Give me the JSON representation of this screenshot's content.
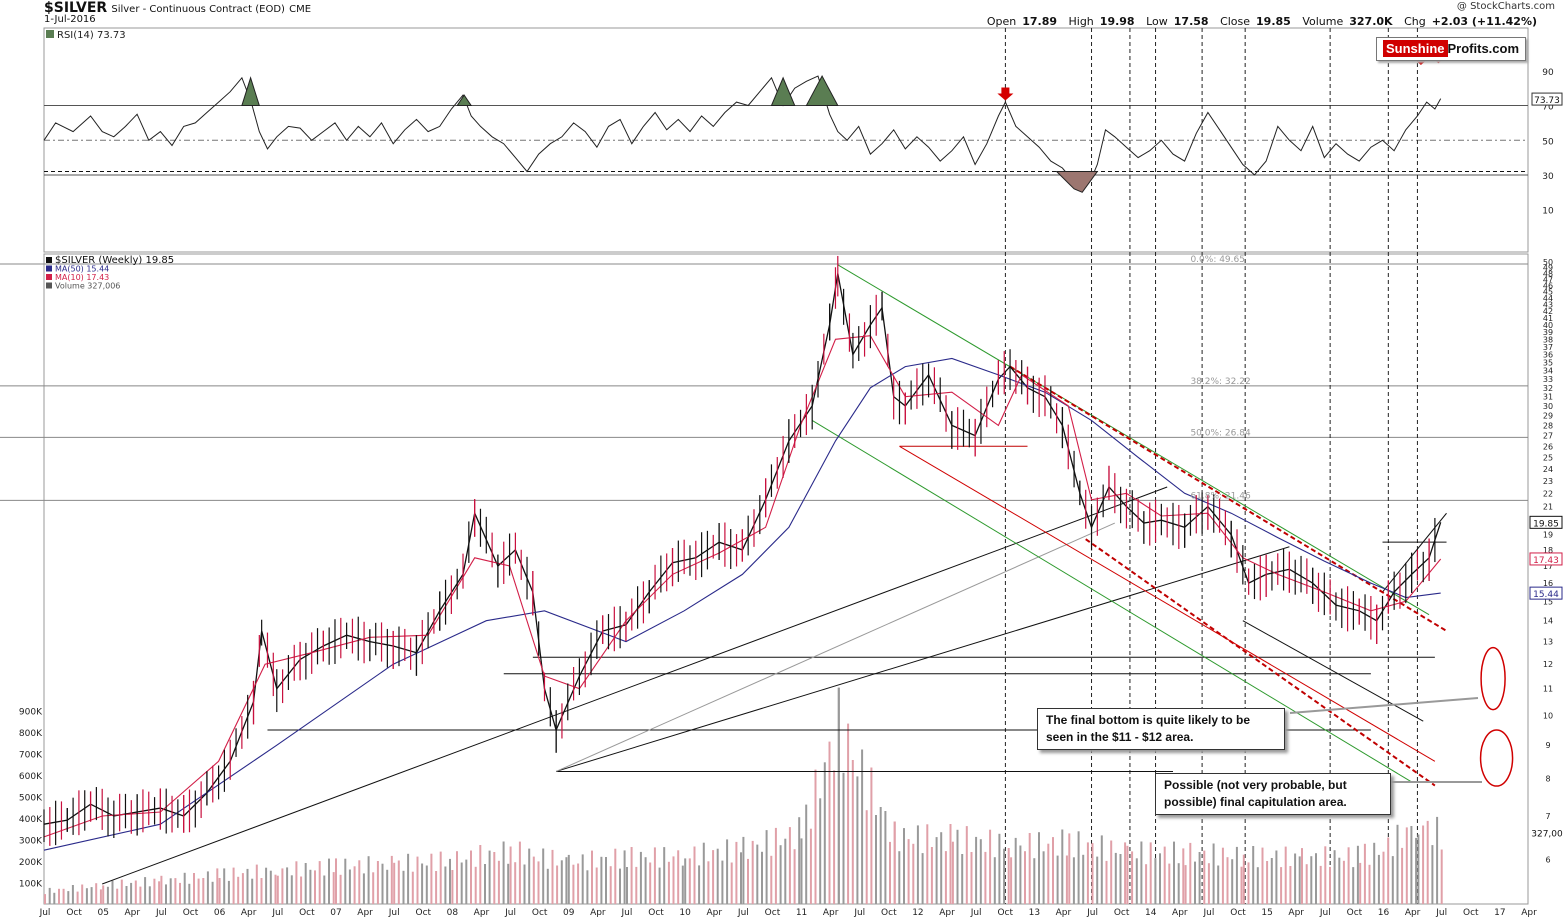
{
  "header": {
    "symbol": "$SILVER",
    "subtitle": "Silver - Continuous Contract (EOD)",
    "exchange": "CME",
    "date": "1-Jul-2016",
    "credit": "@ StockCharts.com",
    "ohlc": {
      "open_label": "Open",
      "open": "17.89",
      "high_label": "High",
      "high": "19.98",
      "low_label": "Low",
      "low": "17.58",
      "close_label": "Close",
      "close": "19.85",
      "volume_label": "Volume",
      "volume": "327.0K",
      "chg_label": "Chg",
      "chg": "+2.03 (+11.42%)"
    }
  },
  "brand": {
    "part1": "Sunshine",
    "part2": "Profits.com"
  },
  "annotations": {
    "note1": "The final bottom is quite likely to be seen in the $11 - $12 area.",
    "note2": "Possible (not very probable, but possible) final capitulation area."
  },
  "chart_data": [
    {
      "type": "line",
      "panel": "rsi",
      "legend": "RSI(14) 73.73",
      "last_value_label": "73.73",
      "last_value": 73.73,
      "y_ticks": [
        10,
        30,
        50,
        70,
        90
      ],
      "y_range": [
        0,
        100
      ],
      "reference_lines": [
        70,
        50,
        32
      ],
      "x_date_range": [
        2004.5,
        2016.5
      ],
      "series": [
        {
          "x": [
            2004.5,
            2004.6,
            2004.75,
            2004.9,
            2005.0,
            2005.1,
            2005.2,
            2005.3,
            2005.4,
            2005.5,
            2005.6,
            2005.7,
            2005.8,
            2005.9,
            2006.0,
            2006.1,
            2006.2,
            2006.28,
            2006.35,
            2006.42,
            2006.5,
            2006.6,
            2006.7,
            2006.8,
            2006.9,
            2007.0,
            2007.1,
            2007.2,
            2007.3,
            2007.4,
            2007.5,
            2007.6,
            2007.7,
            2007.8,
            2007.9,
            2008.0,
            2008.1,
            2008.17,
            2008.25,
            2008.35,
            2008.45,
            2008.55,
            2008.65,
            2008.75,
            2008.85,
            2008.95,
            2009.05,
            2009.15,
            2009.25,
            2009.35,
            2009.45,
            2009.55,
            2009.65,
            2009.75,
            2009.85,
            2009.95,
            2010.05,
            2010.15,
            2010.25,
            2010.35,
            2010.45,
            2010.55,
            2010.65,
            2010.75,
            2010.85,
            2010.95,
            2011.05,
            2011.15,
            2011.25,
            2011.32,
            2011.4,
            2011.5,
            2011.6,
            2011.7,
            2011.8,
            2011.9,
            2012.0,
            2012.1,
            2012.2,
            2012.3,
            2012.4,
            2012.5,
            2012.6,
            2012.7,
            2012.76,
            2012.85,
            2012.95,
            2013.05,
            2013.15,
            2013.25,
            2013.35,
            2013.42,
            2013.5,
            2013.55,
            2013.62,
            2013.7,
            2013.8,
            2013.9,
            2014.0,
            2014.1,
            2014.2,
            2014.3,
            2014.4,
            2014.5,
            2014.6,
            2014.7,
            2014.8,
            2014.9,
            2015.0,
            2015.1,
            2015.2,
            2015.3,
            2015.4,
            2015.5,
            2015.6,
            2015.7,
            2015.8,
            2015.9,
            2016.0,
            2016.1,
            2016.2,
            2016.3,
            2016.38,
            2016.45,
            2016.5
          ],
          "y": [
            50,
            60,
            55,
            64,
            55,
            52,
            58,
            65,
            50,
            55,
            47,
            58,
            60,
            66,
            72,
            78,
            86,
            72,
            55,
            45,
            52,
            58,
            57,
            50,
            55,
            60,
            50,
            58,
            52,
            60,
            48,
            56,
            62,
            55,
            58,
            68,
            76,
            64,
            58,
            52,
            48,
            40,
            32,
            42,
            48,
            52,
            60,
            55,
            46,
            58,
            62,
            48,
            58,
            66,
            56,
            62,
            55,
            64,
            58,
            66,
            72,
            70,
            78,
            86,
            70,
            80,
            84,
            87,
            65,
            55,
            50,
            58,
            42,
            48,
            56,
            45,
            52,
            46,
            38,
            44,
            52,
            36,
            48,
            64,
            72,
            58,
            52,
            46,
            38,
            34,
            26,
            22,
            28,
            36,
            56,
            52,
            46,
            40,
            44,
            50,
            42,
            38,
            54,
            66,
            56,
            46,
            36,
            30,
            38,
            58,
            50,
            44,
            58,
            40,
            48,
            42,
            38,
            46,
            50,
            44,
            56,
            64,
            72,
            68,
            74
          ]
        }
      ]
    },
    {
      "type": "candlestick",
      "panel": "price",
      "legend": [
        "$SILVER (Weekly) 19.85",
        "MA(50) 15.44",
        "MA(10) 17.43",
        "Volume 327,006"
      ],
      "y_scale": "log",
      "y_range": [
        5.5,
        50
      ],
      "y_ticks": [
        6,
        7,
        8,
        9,
        10,
        11,
        12,
        13,
        14,
        15,
        16,
        17,
        18,
        19,
        20,
        21,
        22,
        23,
        24,
        25,
        26,
        27,
        28,
        29,
        30,
        31,
        32,
        33,
        34,
        35,
        36,
        37,
        38,
        39,
        40,
        41,
        42,
        43,
        44,
        45,
        46,
        47,
        48,
        49,
        50
      ],
      "price_labels": [
        {
          "text": "19.85",
          "value": 19.85
        },
        {
          "text": "17.43",
          "value": 17.43
        },
        {
          "text": "15.44",
          "value": 15.44
        }
      ],
      "fib_levels": [
        {
          "label": "0.0%",
          "value": 49.65
        },
        {
          "label": "38.2%",
          "value": 32.22
        },
        {
          "label": "50.0%",
          "value": 26.84
        },
        {
          "label": "61.8%",
          "value": 21.46
        }
      ],
      "x_ticks": [
        "Jul",
        "Oct",
        "05",
        "Apr",
        "Jul",
        "Oct",
        "06",
        "Apr",
        "Jul",
        "Oct",
        "07",
        "Apr",
        "Jul",
        "Oct",
        "08",
        "Apr",
        "Jul",
        "Oct",
        "09",
        "Apr",
        "Jul",
        "Oct",
        "10",
        "Apr",
        "Jul",
        "Oct",
        "11",
        "Apr",
        "Jul",
        "Oct",
        "12",
        "Apr",
        "Jul",
        "Oct",
        "13",
        "Apr",
        "Jul",
        "Oct",
        "14",
        "Apr",
        "Jul",
        "Oct",
        "15",
        "Apr",
        "Jul",
        "Oct",
        "16",
        "Apr",
        "Jul",
        "Oct",
        "17",
        "Apr"
      ],
      "x_date_range": [
        2004.5,
        2017.25
      ],
      "series": [
        {
          "name": "$SILVER",
          "x": [
            2004.5,
            2004.7,
            2004.9,
            2005.1,
            2005.3,
            2005.5,
            2005.7,
            2005.9,
            2006.1,
            2006.3,
            2006.37,
            2006.5,
            2006.7,
            2006.9,
            2007.1,
            2007.3,
            2007.5,
            2007.7,
            2007.9,
            2008.1,
            2008.2,
            2008.4,
            2008.55,
            2008.7,
            2008.8,
            2008.9,
            2009.1,
            2009.3,
            2009.5,
            2009.7,
            2009.9,
            2010.1,
            2010.3,
            2010.5,
            2010.7,
            2010.9,
            2011.1,
            2011.25,
            2011.32,
            2011.45,
            2011.6,
            2011.7,
            2011.8,
            2011.9,
            2012.1,
            2012.3,
            2012.5,
            2012.7,
            2012.8,
            2012.95,
            2013.1,
            2013.25,
            2013.4,
            2013.5,
            2013.65,
            2013.8,
            2013.95,
            2014.1,
            2014.3,
            2014.5,
            2014.7,
            2014.85,
            2015.0,
            2015.2,
            2015.4,
            2015.6,
            2015.8,
            2015.95,
            2016.1,
            2016.25,
            2016.4,
            2016.5
          ],
          "y": [
            6.8,
            6.9,
            7.3,
            7.0,
            7.1,
            7.2,
            7.0,
            7.6,
            8.5,
            10.5,
            13.5,
            11.0,
            12.2,
            12.8,
            13.3,
            13.0,
            12.8,
            12.5,
            14.5,
            16.5,
            20.5,
            17.0,
            18.0,
            15.5,
            11.0,
            9.5,
            11.5,
            13.5,
            13.8,
            15.5,
            17.2,
            17.5,
            18.5,
            18.0,
            21.5,
            26.5,
            30.0,
            40.0,
            48.0,
            36.0,
            40.0,
            42.5,
            31.0,
            30.0,
            33.5,
            28.0,
            27.0,
            33.0,
            34.5,
            32.0,
            31.0,
            28.0,
            22.0,
            19.5,
            22.5,
            21.0,
            19.8,
            20.0,
            19.5,
            21.0,
            19.0,
            16.0,
            16.5,
            16.8,
            16.0,
            14.8,
            14.5,
            14.0,
            15.5,
            16.5,
            17.5,
            19.85
          ]
        },
        {
          "name": "MA(50)",
          "x": [
            2004.5,
            2005.5,
            2006.5,
            2007.5,
            2008.3,
            2008.8,
            2009.5,
            2010.0,
            2010.5,
            2010.9,
            2011.3,
            2011.6,
            2011.9,
            2012.3,
            2012.7,
            2013.1,
            2013.5,
            2013.9,
            2014.3,
            2014.7,
            2015.1,
            2015.5,
            2015.9,
            2016.2,
            2016.5
          ],
          "y": [
            6.2,
            6.8,
            9.0,
            12.0,
            14.0,
            14.5,
            13.0,
            14.5,
            16.5,
            19.5,
            26.5,
            32.0,
            34.5,
            35.5,
            33.5,
            31.5,
            28.5,
            25.0,
            22.0,
            20.5,
            18.8,
            17.3,
            16.0,
            15.2,
            15.44
          ]
        },
        {
          "name": "MA(10)",
          "x": [
            2004.5,
            2005.0,
            2005.5,
            2006.0,
            2006.4,
            2006.8,
            2007.3,
            2007.8,
            2008.2,
            2008.5,
            2008.8,
            2009.1,
            2009.5,
            2009.9,
            2010.3,
            2010.7,
            2011.0,
            2011.3,
            2011.6,
            2011.9,
            2012.3,
            2012.7,
            2012.9,
            2013.3,
            2013.5,
            2013.8,
            2014.1,
            2014.5,
            2014.8,
            2015.1,
            2015.5,
            2015.9,
            2016.2,
            2016.5
          ],
          "y": [
            6.5,
            7.0,
            7.1,
            8.5,
            12.0,
            12.5,
            13.2,
            13.3,
            17.5,
            17.0,
            11.5,
            11.0,
            14.0,
            16.5,
            17.8,
            19.5,
            28.0,
            38.0,
            38.5,
            31.0,
            31.5,
            28.0,
            33.5,
            30.0,
            21.5,
            22.0,
            20.3,
            20.5,
            17.5,
            16.5,
            15.5,
            14.5,
            15.0,
            17.43
          ]
        }
      ],
      "volume": {
        "y_ticks": [
          "100K",
          "200K",
          "300K",
          "400K",
          "500K",
          "600K",
          "700K",
          "800K",
          "900K"
        ],
        "last_label": "327,00",
        "x": [
          2004.5,
          2005.0,
          2005.5,
          2006.0,
          2006.5,
          2007.0,
          2007.5,
          2008.0,
          2008.5,
          2009.0,
          2009.5,
          2010.0,
          2010.5,
          2011.0,
          2011.32,
          2011.8,
          2012.3,
          2012.8,
          2013.3,
          2013.8,
          2014.3,
          2014.8,
          2015.3,
          2015.8,
          2016.0,
          2016.3,
          2016.5
        ],
        "y": [
          60,
          90,
          110,
          140,
          160,
          180,
          190,
          210,
          250,
          200,
          220,
          230,
          260,
          340,
          840,
          320,
          310,
          280,
          290,
          250,
          240,
          230,
          220,
          230,
          260,
          380,
          327
        ]
      }
    }
  ]
}
